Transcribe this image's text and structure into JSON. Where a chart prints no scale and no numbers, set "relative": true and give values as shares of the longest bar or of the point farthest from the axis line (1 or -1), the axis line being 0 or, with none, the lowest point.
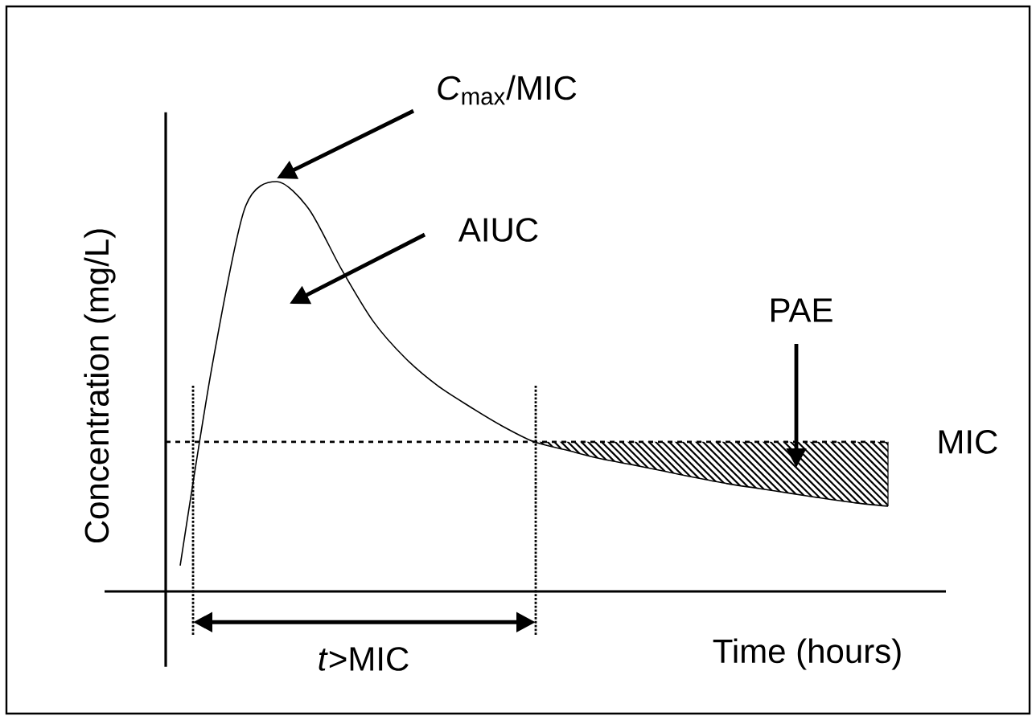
{
  "chart_data": {
    "type": "line",
    "relative": true,
    "categories": [
      null,
      null,
      null,
      null,
      null,
      null,
      null,
      null,
      null,
      null,
      null,
      null,
      null,
      null,
      null,
      null,
      null,
      null,
      null,
      null,
      null,
      null,
      null
    ],
    "xlabel": "Time (hours)",
    "ylabel": "Concentration (mg/L)",
    "series": [
      {
        "color": "#000000",
        "values": [
          0.063,
          0.553,
          0.933,
          1.0,
          0.933,
          0.788,
          0.659,
          0.569,
          0.502,
          0.451,
          0.404,
          0.365,
          0.345,
          0.325,
          0.31,
          0.294,
          0.278,
          0.263,
          0.251,
          0.239,
          0.227,
          0.216,
          0.208
        ]
      }
    ],
    "ref_lines": [
      {
        "axis": "y",
        "value": 0.365,
        "label": "MIC",
        "line_style": "dashed"
      }
    ],
    "annotations": [
      "*C*$_{max}$/MIC",
      "AIUC",
      "PAE",
      "*t*>MIC"
    ],
    "marker": "none",
    "line_style": "solid"
  }
}
